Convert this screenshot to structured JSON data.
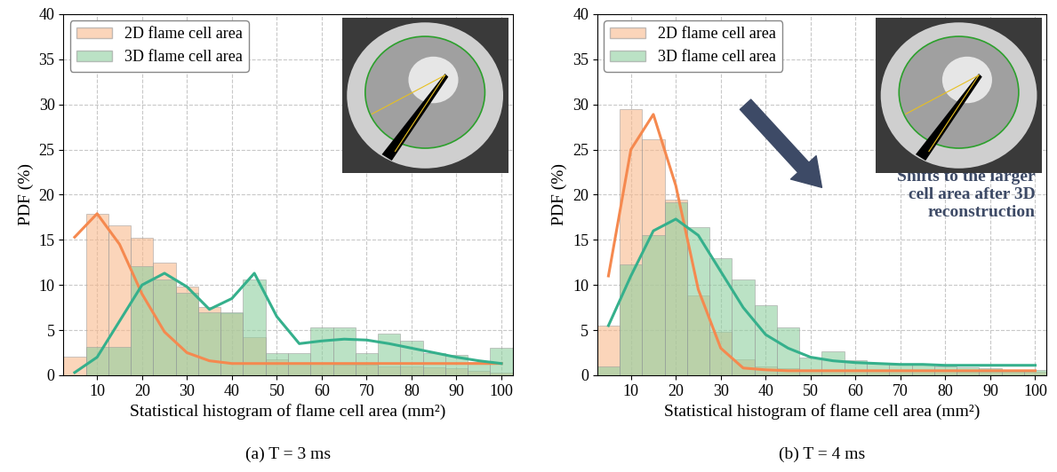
{
  "chart_data": [
    {
      "type": "histogram",
      "caption": "(a) T = 3 ms",
      "x_label": "Statistical histogram of flame cell area (mm²)",
      "y_label": "PDF (%)",
      "xlim": [
        2.5,
        102.5
      ],
      "ylim": [
        0,
        40
      ],
      "xticks": [
        10,
        20,
        30,
        40,
        50,
        60,
        70,
        80,
        90,
        100
      ],
      "yticks": [
        0,
        5,
        10,
        15,
        20,
        25,
        30,
        35,
        40
      ],
      "grid": true,
      "legend": "upper left",
      "bins": [
        2.5,
        7.5,
        12.5,
        17.5,
        22.5,
        27.5,
        32.5,
        37.5,
        42.5,
        47.5,
        52.5,
        57.5,
        62.5,
        67.5,
        72.5,
        77.5,
        82.5,
        87.5,
        92.5,
        97.5,
        102.5
      ],
      "series": [
        {
          "name": "2D flame cell area",
          "color": "#f9b98c",
          "values": [
            2.1,
            17.9,
            16.6,
            15.2,
            12.5,
            9.8,
            7.6,
            6.9,
            4.2,
            1.8,
            1.3,
            1.3,
            1.2,
            1.2,
            1.0,
            1.0,
            0.9,
            0.8,
            0.5,
            0.3
          ]
        },
        {
          "name": "3D flame cell area",
          "color": "#8fcf9f",
          "values": [
            0,
            3.1,
            3.1,
            12.1,
            10.6,
            9.1,
            7.0,
            7.0,
            10.6,
            2.5,
            2.5,
            5.3,
            5.3,
            2.5,
            4.6,
            3.8,
            2.5,
            2.3,
            1.5,
            3.0
          ]
        }
      ],
      "curves": [
        {
          "type": "line",
          "color": "#f5894f",
          "x": [
            5,
            10,
            15,
            20,
            25,
            30,
            35,
            40,
            45,
            50,
            55,
            60,
            65,
            70,
            75,
            80,
            85,
            90,
            95,
            100
          ],
          "values": [
            15.3,
            17.9,
            14.5,
            9.0,
            4.8,
            2.5,
            1.6,
            1.3,
            1.3,
            1.3,
            1.3,
            1.3,
            1.3,
            1.3,
            1.3,
            1.3,
            1.3,
            1.3,
            1.3,
            1.3
          ]
        },
        {
          "type": "line",
          "color": "#35b08c",
          "x": [
            5,
            10,
            15,
            20,
            25,
            30,
            35,
            40,
            45,
            50,
            55,
            60,
            65,
            70,
            75,
            80,
            85,
            90,
            95,
            100
          ],
          "values": [
            0.3,
            2.0,
            6.0,
            10.0,
            11.3,
            9.8,
            7.3,
            8.5,
            11.3,
            6.5,
            3.5,
            3.8,
            4.0,
            3.9,
            3.5,
            3.0,
            2.5,
            2.0,
            1.6,
            1.3
          ]
        }
      ]
    },
    {
      "type": "histogram",
      "caption": "(b) T = 4 ms",
      "x_label": "Statistical histogram of flame cell area (mm²)",
      "y_label": "PDF (%)",
      "xlim": [
        2.5,
        102.5
      ],
      "ylim": [
        0,
        40
      ],
      "xticks": [
        10,
        20,
        30,
        40,
        50,
        60,
        70,
        80,
        90,
        100
      ],
      "yticks": [
        0,
        5,
        10,
        15,
        20,
        25,
        30,
        35,
        40
      ],
      "grid": true,
      "legend": "upper left",
      "annotations": [
        "Shifts to the larger\ncell area after 3D\nreconstruction"
      ],
      "bins": [
        2.5,
        7.5,
        12.5,
        17.5,
        22.5,
        27.5,
        32.5,
        37.5,
        42.5,
        47.5,
        52.5,
        57.5,
        62.5,
        67.5,
        72.5,
        77.5,
        82.5,
        87.5,
        92.5,
        97.5,
        102.5
      ],
      "series": [
        {
          "name": "2D flame cell area",
          "color": "#f9b98c",
          "values": [
            5.5,
            29.5,
            26.1,
            19.5,
            8.8,
            4.8,
            1.8,
            1.0,
            0.8,
            0.6,
            0.5,
            0.5,
            0.5,
            0.5,
            0.5,
            0.5,
            0.4,
            0.4,
            0.4,
            0.4
          ]
        },
        {
          "name": "3D flame cell area",
          "color": "#8fcf9f",
          "values": [
            1.0,
            12.3,
            15.5,
            19.2,
            16.4,
            13.0,
            10.6,
            7.8,
            5.3,
            2.0,
            2.6,
            1.7,
            1.4,
            1.2,
            1.2,
            1.0,
            0.9,
            0.8,
            0.6,
            0.6
          ]
        }
      ],
      "curves": [
        {
          "type": "line",
          "color": "#f5894f",
          "x": [
            5,
            10,
            15,
            20,
            25,
            30,
            35,
            40,
            45,
            50,
            55,
            60,
            65,
            70,
            75,
            80,
            85,
            90,
            95,
            100
          ],
          "values": [
            11.0,
            25.0,
            28.9,
            21.0,
            9.5,
            3.0,
            0.8,
            0.6,
            0.5,
            0.5,
            0.5,
            0.5,
            0.5,
            0.5,
            0.5,
            0.5,
            0.5,
            0.5,
            0.5,
            0.5
          ]
        },
        {
          "type": "line",
          "color": "#35b08c",
          "x": [
            5,
            10,
            15,
            20,
            25,
            30,
            35,
            40,
            45,
            50,
            55,
            60,
            65,
            70,
            75,
            80,
            85,
            90,
            95,
            100
          ],
          "values": [
            5.5,
            11.0,
            16.0,
            17.3,
            15.5,
            11.5,
            7.5,
            4.5,
            3.0,
            2.0,
            1.6,
            1.4,
            1.3,
            1.2,
            1.2,
            1.1,
            1.1,
            1.1,
            1.1,
            1.1
          ]
        }
      ]
    }
  ]
}
